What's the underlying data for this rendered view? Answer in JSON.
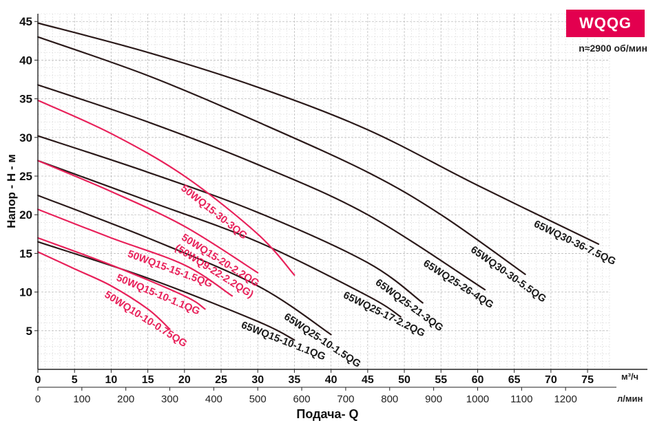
{
  "chart_data": {
    "type": "line",
    "badge": "WQQG",
    "speed_note": "n≈2900 об/мин",
    "xlabel": "Подача- Q",
    "ylabel": "Напор - H - м",
    "x_unit_primary": "м³/ч",
    "x_unit_secondary": "л/мин",
    "xlim": [
      0,
      78
    ],
    "ylim": [
      0,
      46
    ],
    "x_ticks": [
      0,
      5,
      10,
      15,
      20,
      25,
      30,
      35,
      40,
      45,
      50,
      55,
      60,
      65,
      70,
      75
    ],
    "x_ticks_secondary": [
      0,
      100,
      200,
      300,
      400,
      500,
      600,
      700,
      800,
      900,
      1000,
      1100,
      1200
    ],
    "y_ticks": [
      5,
      10,
      15,
      20,
      25,
      30,
      35,
      40,
      45
    ],
    "series": [
      {
        "name": "65WQ30-36-7.5QG",
        "color": "#2b1a1a",
        "x": [
          0,
          15,
          30,
          45,
          60,
          76.5
        ],
        "y": [
          44.8,
          41,
          36.5,
          31,
          23.8,
          16.2
        ]
      },
      {
        "name": "65WQ30-30-5.5QG",
        "color": "#2b1a1a",
        "x": [
          0,
          15,
          30,
          45,
          55,
          66.5
        ],
        "y": [
          43,
          38,
          32,
          25.5,
          20,
          12.3
        ]
      },
      {
        "name": "65WQ25-26-4QG",
        "color": "#2b1a1a",
        "x": [
          0,
          15,
          30,
          45,
          61
        ],
        "y": [
          36.8,
          32,
          26.5,
          20,
          10.3
        ]
      },
      {
        "name": "65WQ25-21-3QG",
        "color": "#2b1a1a",
        "x": [
          0,
          15,
          30,
          45,
          52.5
        ],
        "y": [
          30.2,
          25.5,
          20.3,
          13.8,
          8.6
        ]
      },
      {
        "name": "65WQ25-17-2.2QG",
        "color": "#2b1a1a",
        "x": [
          0,
          15,
          30,
          45,
          49.5
        ],
        "y": [
          27,
          21.8,
          16.5,
          9.5,
          6.8
        ]
      },
      {
        "name": "65WQ25-10-1.5QG",
        "color": "#2b1a1a",
        "x": [
          0,
          15,
          30,
          40
        ],
        "y": [
          22.5,
          17,
          10.8,
          4.5
        ]
      },
      {
        "name": "65WQ15-10-1.1QG",
        "color": "#2b1a1a",
        "x": [
          0,
          15,
          30,
          35
        ],
        "y": [
          16.5,
          11.8,
          6.2,
          3.8
        ]
      },
      {
        "name": "50WQ15-30-3QG",
        "color": "#e8215a",
        "x": [
          0,
          10,
          20,
          30,
          35
        ],
        "y": [
          34.8,
          30.5,
          25,
          17.5,
          12.2
        ]
      },
      {
        "name": "50WQ15-20-2.2QG (50WQ9-22-2.2QG)",
        "color": "#e8215a",
        "x": [
          0,
          10,
          20,
          30
        ],
        "y": [
          27,
          23,
          18.5,
          12.5
        ]
      },
      {
        "name": "50WQ15-15-1.5QG",
        "color": "#e8215a",
        "x": [
          0,
          10,
          20,
          26.5
        ],
        "y": [
          20.7,
          17,
          13.5,
          9.5
        ]
      },
      {
        "name": "50WQ15-10-1.1QG",
        "color": "#e8215a",
        "x": [
          0,
          10,
          20,
          22.8
        ],
        "y": [
          17,
          13.5,
          9.5,
          7.8
        ]
      },
      {
        "name": "50WQ10-10-0.75QG",
        "color": "#e8215a",
        "x": [
          0,
          5,
          10,
          15,
          18
        ],
        "y": [
          15.2,
          13,
          10.8,
          7.8,
          5.2
        ]
      }
    ],
    "curve_labels": [
      {
        "text": "65WQ30-36-7.5QG",
        "series": 0,
        "at_x": 69
      },
      {
        "text": "65WQ30-30-5.5QG",
        "series": 1,
        "at_x": 60.5
      },
      {
        "text": "65WQ25-26-4QG",
        "series": 2,
        "at_x": 54
      },
      {
        "text": "65WQ25-21-3QG",
        "series": 3,
        "at_x": 47.5
      },
      {
        "text": "65WQ25-17-2.2QG",
        "series": 4,
        "at_x": 43
      },
      {
        "text": "65WQ25-10-1.5QG",
        "series": 5,
        "at_x": 35
      },
      {
        "text": "65WQ15-10-1.1QG",
        "series": 6,
        "at_x": 29
      },
      {
        "text": "50WQ15-30-3QG",
        "series": 7,
        "at_x": 21
      },
      {
        "text": "50WQ15-20-2.2QG",
        "series": 8,
        "at_x": 21
      },
      {
        "text": "(50WQ9-22-2.2QG)",
        "series": 8,
        "at_x": 21
      },
      {
        "text": "50WQ15-15-1.5QG",
        "series": 9,
        "at_x": 13.5
      },
      {
        "text": "50WQ15-10-1.1QG",
        "series": 10,
        "at_x": 12
      },
      {
        "text": "50WQ10-10-0.75QG",
        "series": 11,
        "at_x": 10.5
      }
    ]
  }
}
